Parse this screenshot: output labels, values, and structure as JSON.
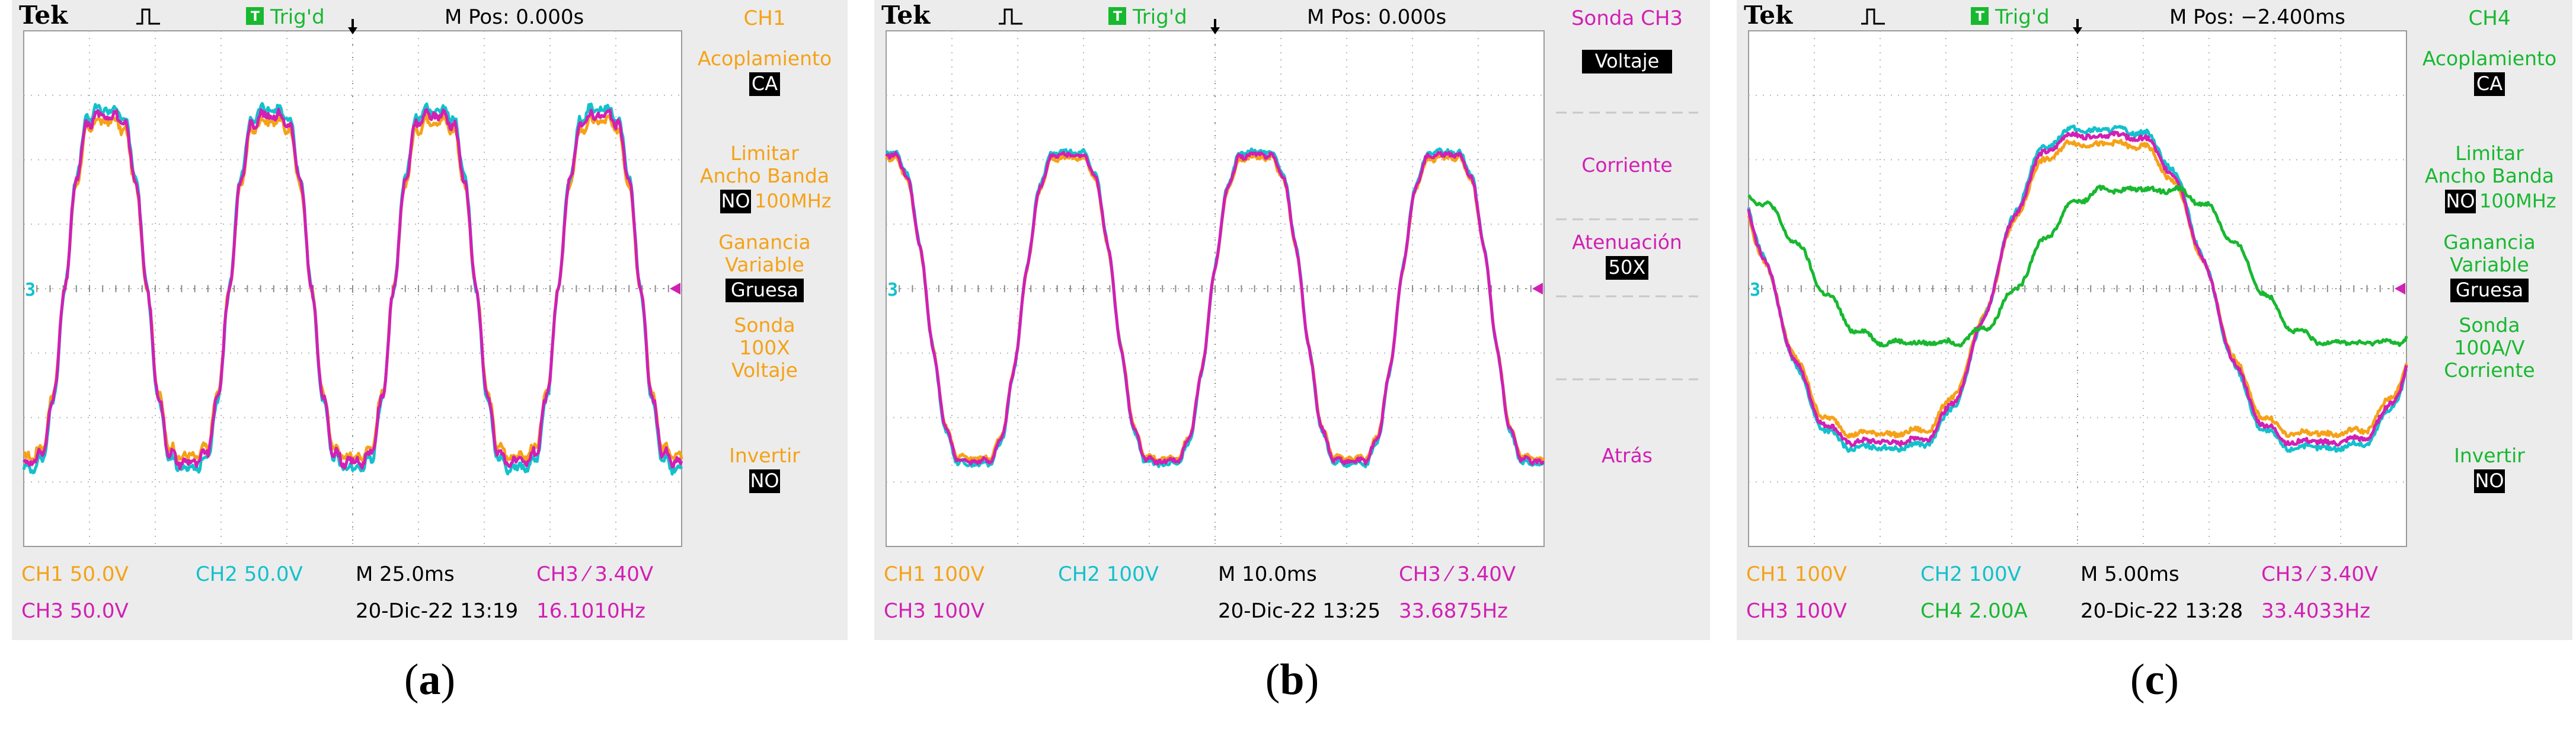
{
  "colors": {
    "ch1": "#f5a217",
    "ch2": "#12c1cc",
    "ch3": "#d21fb4",
    "ch4": "#18b830",
    "grid": "#b9b9b9",
    "screen": "#ffffff",
    "frame": "#ececec",
    "menu_text": "#f5a217"
  },
  "chart_data": [
    {
      "type": "line",
      "caption": {
        "open": "(",
        "letter": "a",
        "close": ")"
      },
      "header": {
        "brand": "Tek",
        "trig_icon": "T",
        "trig_status": "Trig'd",
        "mpos": "M Pos: 0.000s"
      },
      "ground_marker": "3",
      "cycles": 4.0,
      "phase": 270,
      "grid": {
        "x_divisions": 10,
        "y_divisions": 8
      },
      "ylim": [
        -4,
        4
      ],
      "series": [
        {
          "name": "CH1",
          "color": "#f5a217",
          "amplitude": 2.95,
          "offset": 0.0,
          "ripple": 0.18
        },
        {
          "name": "CH2",
          "color": "#12c1cc",
          "amplitude": 3.15,
          "offset": 0.0,
          "ripple": 0.18
        },
        {
          "name": "CH3",
          "color": "#d21fb4",
          "amplitude": 3.05,
          "offset": 0.0,
          "ripple": 0.18
        }
      ],
      "menu": {
        "title": "CH1",
        "title_color": "#f5a217",
        "text_color": "#f5a217",
        "items": [
          {
            "label": "Acoplamiento",
            "value": "CA"
          },
          {
            "label": "Limitar Ancho Banda",
            "value": "NO",
            "suffix": "100MHz"
          },
          {
            "label": "Ganancia Variable",
            "value": "Gruesa"
          },
          {
            "label": "Sonda 100X Voltaje",
            "value": ""
          },
          {
            "label": "Invertir",
            "value": "NO"
          }
        ]
      },
      "footer": {
        "row1": [
          {
            "text": "CH1  50.0V",
            "color": "#f5a217"
          },
          {
            "text": "CH2  50.0V",
            "color": "#12c1cc"
          },
          {
            "text": "M 25.0ms",
            "color": "#000000"
          },
          {
            "text": "CH3 ⁄ 3.40V",
            "color": "#d21fb4"
          }
        ],
        "row2": [
          {
            "text": "CH3  50.0V",
            "color": "#d21fb4"
          },
          {
            "text": "",
            "color": "#000000"
          },
          {
            "text": "20-Dic-22 13:19",
            "color": "#000000"
          },
          {
            "text": "16.1010Hz",
            "color": "#d21fb4"
          }
        ]
      }
    },
    {
      "type": "line",
      "caption": {
        "open": "(",
        "letter": "b",
        "close": ")"
      },
      "header": {
        "brand": "Tek",
        "trig_icon": "T",
        "trig_status": "Trig'd",
        "mpos": "M Pos: 0.000s"
      },
      "ground_marker": "3",
      "cycles": 3.5,
      "phase": 100,
      "grid": {
        "x_divisions": 10,
        "y_divisions": 8
      },
      "ylim": [
        -4,
        4
      ],
      "series": [
        {
          "name": "CH1",
          "color": "#f5a217",
          "amplitude": 2.65,
          "offset": -0.3,
          "ripple": 0.1
        },
        {
          "name": "CH2",
          "color": "#12c1cc",
          "amplitude": 2.75,
          "offset": -0.3,
          "ripple": 0.1
        },
        {
          "name": "CH3",
          "color": "#d21fb4",
          "amplitude": 2.7,
          "offset": -0.3,
          "ripple": 0.1
        }
      ],
      "menu": {
        "title": "Sonda CH3",
        "title_color": "#d21fb4",
        "text_color": "#d21fb4",
        "items": [
          {
            "label": "",
            "value": "Voltaje"
          },
          {
            "label": "Corriente",
            "value": ""
          },
          {
            "label": "Atenuación",
            "value": "50X"
          },
          {
            "label": "",
            "value": ""
          },
          {
            "label": "Atrás",
            "value": ""
          }
        ]
      },
      "footer": {
        "row1": [
          {
            "text": "CH1  100V",
            "color": "#f5a217"
          },
          {
            "text": "CH2  100V",
            "color": "#12c1cc"
          },
          {
            "text": "M 10.0ms",
            "color": "#000000"
          },
          {
            "text": "CH3 ⁄ 3.40V",
            "color": "#d21fb4"
          }
        ],
        "row2": [
          {
            "text": "CH3  100V",
            "color": "#d21fb4"
          },
          {
            "text": "",
            "color": "#000000"
          },
          {
            "text": "20-Dic-22 13:25",
            "color": "#000000"
          },
          {
            "text": "33.6875Hz",
            "color": "#d21fb4"
          }
        ]
      }
    },
    {
      "type": "line",
      "caption": {
        "open": "(",
        "letter": "c",
        "close": ")"
      },
      "header": {
        "brand": "Tek",
        "trig_icon": "T",
        "trig_status": "Trig'd",
        "mpos": "M Pos: −2.400ms"
      },
      "ground_marker": "3",
      "cycles": 1.5,
      "phase": 160,
      "grid": {
        "x_divisions": 10,
        "y_divisions": 8
      },
      "ylim": [
        -4,
        4
      ],
      "series": [
        {
          "name": "CH1",
          "color": "#f5a217",
          "amplitude": 2.55,
          "offset": 0.0,
          "ripple": 0.12
        },
        {
          "name": "CH2",
          "color": "#12c1cc",
          "amplitude": 2.8,
          "offset": 0.0,
          "ripple": 0.12
        },
        {
          "name": "CH3",
          "color": "#d21fb4",
          "amplitude": 2.7,
          "offset": 0.0,
          "ripple": 0.12
        },
        {
          "name": "CH4",
          "color": "#18b830",
          "amplitude": 1.35,
          "offset": 0.35,
          "ripple": 0.1,
          "phase_shift": -30
        }
      ],
      "menu": {
        "title": "CH4",
        "title_color": "#18b830",
        "text_color": "#18b830",
        "items": [
          {
            "label": "Acoplamiento",
            "value": "CA"
          },
          {
            "label": "Limitar Ancho Banda",
            "value": "NO",
            "suffix": "100MHz"
          },
          {
            "label": "Ganancia Variable",
            "value": "Gruesa"
          },
          {
            "label": "Sonda 100A/V Corriente",
            "value": ""
          },
          {
            "label": "Invertir",
            "value": "NO"
          }
        ]
      },
      "footer": {
        "row1": [
          {
            "text": "CH1  100V",
            "color": "#f5a217"
          },
          {
            "text": "CH2  100V",
            "color": "#12c1cc"
          },
          {
            "text": "M 5.00ms",
            "color": "#000000"
          },
          {
            "text": "CH3 ⁄ 3.40V",
            "color": "#d21fb4"
          }
        ],
        "row2": [
          {
            "text": "CH3  100V",
            "color": "#d21fb4"
          },
          {
            "text": "CH4  2.00A",
            "color": "#18b830"
          },
          {
            "text": "20-Dic-22 13:28",
            "color": "#000000"
          },
          {
            "text": "33.4033Hz",
            "color": "#d21fb4"
          }
        ]
      }
    }
  ]
}
